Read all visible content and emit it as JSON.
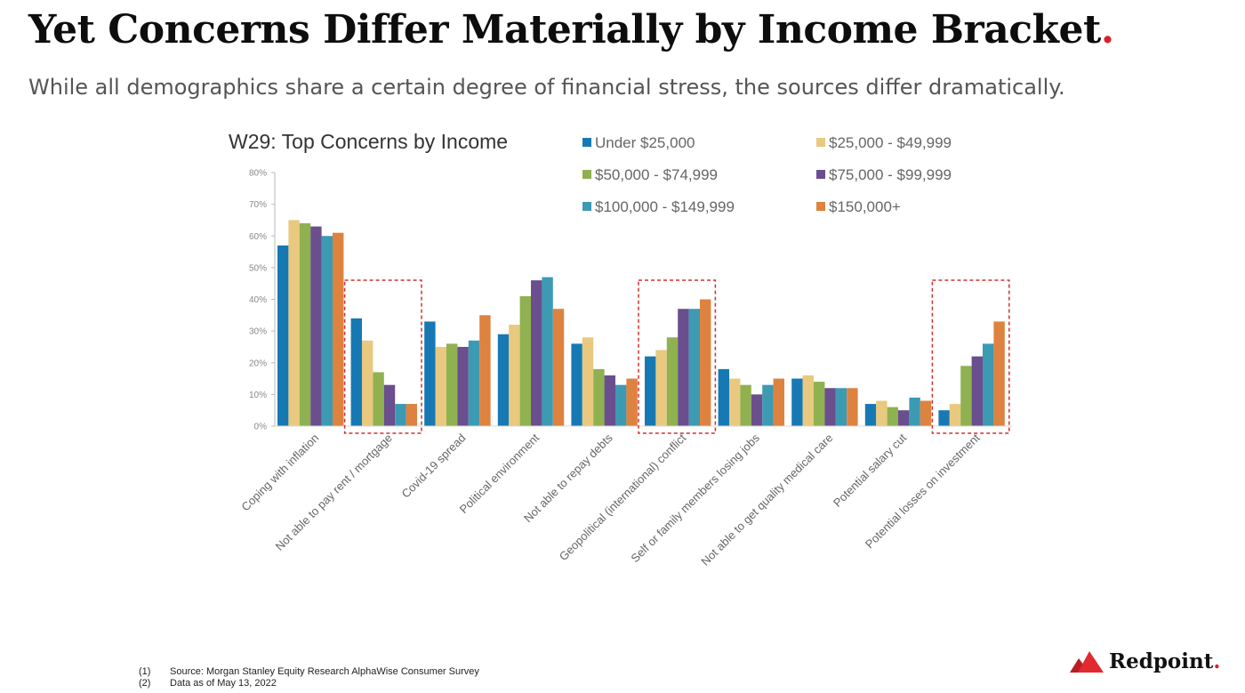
{
  "slide": {
    "title": "Yet Concerns Differ Materially by Income Bracket",
    "title_dot": ".",
    "subtitle": "While all demographics share a certain degree of financial stress, the sources differ dramatically."
  },
  "chart_data": {
    "type": "bar",
    "title": "W29: Top Concerns by Income",
    "ylim": [
      0,
      80
    ],
    "y_ticks": [
      0,
      10,
      20,
      30,
      40,
      50,
      60,
      70,
      80
    ],
    "y_tick_suffix": "%",
    "grid": false,
    "legend_position": "top-right",
    "categories": [
      "Coping with inflation",
      "Not able to pay rent / mortgage",
      "Covid-19 spread",
      "Political environment",
      "Not able to repay debts",
      "Geopolitical (international) conflict",
      "Self or family members losing jobs",
      "Not able to get quality medical care",
      "Potential salary cut",
      "Potential losses on investment"
    ],
    "highlighted_categories": [
      "Not able to pay rent / mortgage",
      "Geopolitical (international) conflict",
      "Potential losses on investment"
    ],
    "series": [
      {
        "name": "Under $25,000",
        "color": "#1779b4",
        "values": [
          57,
          34,
          33,
          29,
          26,
          22,
          18,
          15,
          7,
          5
        ]
      },
      {
        "name": "$25,000 - $49,999",
        "color": "#e8c97f",
        "values": [
          65,
          27,
          25,
          32,
          28,
          24,
          15,
          16,
          8,
          7
        ]
      },
      {
        "name": "$50,000 - $74,999",
        "color": "#8fb14f",
        "values": [
          64,
          17,
          26,
          41,
          18,
          28,
          13,
          14,
          6,
          19
        ]
      },
      {
        "name": "$75,000 - $99,999",
        "color": "#6a4e8e",
        "values": [
          63,
          13,
          25,
          46,
          16,
          37,
          10,
          12,
          5,
          22
        ]
      },
      {
        "name": "$100,000 - $149,999",
        "color": "#3d9ab3",
        "values": [
          60,
          7,
          27,
          47,
          13,
          37,
          13,
          12,
          9,
          26
        ]
      },
      {
        "name": "$150,000+",
        "color": "#de8240",
        "values": [
          61,
          7,
          35,
          37,
          15,
          40,
          15,
          12,
          8,
          33
        ]
      }
    ]
  },
  "footnotes": [
    {
      "num": "(1)",
      "text": "Source: Morgan Stanley Equity Research AlphaWise Consumer Survey"
    },
    {
      "num": "(2)",
      "text": "Data as of May 13, 2022"
    }
  ],
  "brand": {
    "name": "Redpoint",
    "dot": ".",
    "color": "#d8202a"
  }
}
